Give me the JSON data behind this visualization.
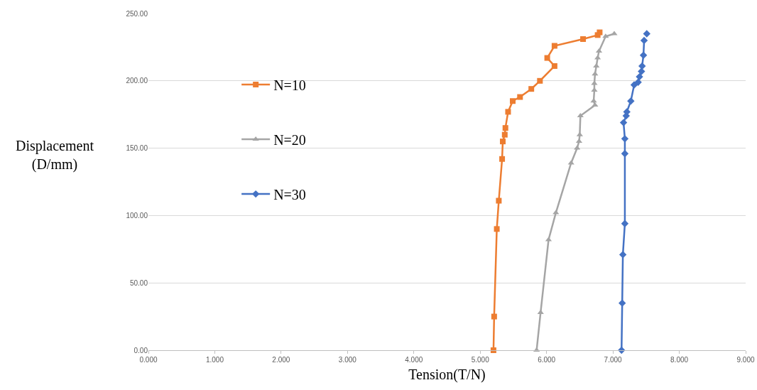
{
  "chart_data": {
    "type": "line",
    "xlabel": "Tension(T/N)",
    "ylabel": "Displacement\n(D/mm)",
    "xlim": [
      0,
      9
    ],
    "xticks": [
      {
        "value": 0,
        "label": "0.000"
      },
      {
        "value": 1,
        "label": "1.000"
      },
      {
        "value": 2,
        "label": "2.000"
      },
      {
        "value": 3,
        "label": "3.000"
      },
      {
        "value": 4,
        "label": "4.000"
      },
      {
        "value": 5,
        "label": "5.000"
      },
      {
        "value": 6,
        "label": "6.000"
      },
      {
        "value": 7,
        "label": "7.000"
      },
      {
        "value": 8,
        "label": "8.000"
      },
      {
        "value": 9,
        "label": "9.000"
      }
    ],
    "ylim": [
      0,
      250
    ],
    "yticks": [
      {
        "value": 0,
        "label": "0.00"
      },
      {
        "value": 50,
        "label": "50.00"
      },
      {
        "value": 100,
        "label": "100.00"
      },
      {
        "value": 150,
        "label": "150.00"
      },
      {
        "value": 200,
        "label": "200.00"
      },
      {
        "value": 250,
        "label": "250.00"
      }
    ],
    "grid": "y",
    "legend": "top left",
    "line_style": "solid",
    "series": [
      {
        "name": "N=10",
        "color": "#ed7d31",
        "marker": "square",
        "x": [
          5.2,
          5.21,
          5.25,
          5.28,
          5.33,
          5.34,
          5.37,
          5.38,
          5.42,
          5.49,
          5.6,
          5.77,
          5.9,
          6.12,
          6.01,
          6.12,
          6.55,
          6.77,
          6.8
        ],
        "values": [
          0,
          25,
          90,
          111,
          142,
          155,
          160,
          165,
          177,
          185,
          188,
          194,
          200,
          211,
          217,
          226,
          231,
          234,
          236
        ]
      },
      {
        "name": "N=20",
        "color": "#a5a5a5",
        "marker": "triangle",
        "x": [
          5.85,
          5.91,
          6.03,
          6.14,
          6.37,
          6.46,
          6.49,
          6.5,
          6.51,
          6.73,
          6.71,
          6.72,
          6.72,
          6.73,
          6.75,
          6.77,
          6.79,
          6.89,
          7.02
        ],
        "values": [
          0,
          28,
          82,
          102,
          139,
          150,
          155,
          160,
          174,
          182,
          185,
          193,
          198,
          205,
          211,
          217,
          222,
          233,
          235
        ]
      },
      {
        "name": "N=30",
        "color": "#4472c4",
        "marker": "diamond",
        "x": [
          7.13,
          7.14,
          7.15,
          7.18,
          7.18,
          7.18,
          7.16,
          7.2,
          7.21,
          7.27,
          7.32,
          7.38,
          7.4,
          7.43,
          7.44,
          7.46,
          7.47,
          7.49,
          7.51
        ],
        "values": [
          0,
          35,
          71,
          94,
          146,
          157,
          169,
          174,
          177,
          185,
          197,
          199,
          203,
          207,
          211,
          219,
          230,
          null,
          235
        ]
      }
    ]
  }
}
